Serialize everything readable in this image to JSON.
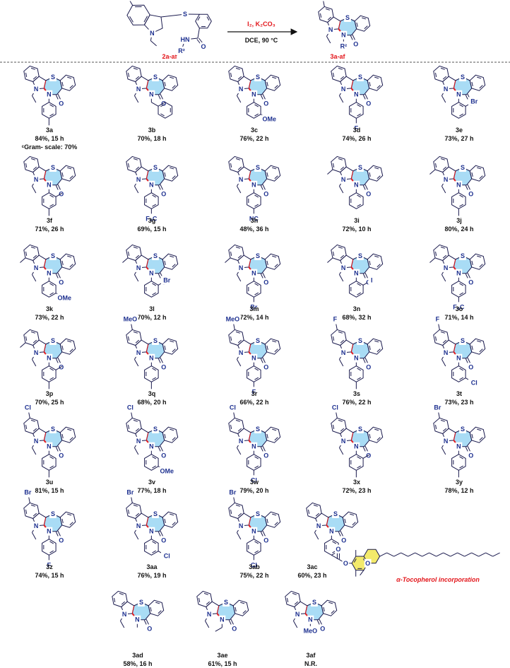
{
  "scheme": {
    "r1": "R¹",
    "s": "S",
    "n": "N",
    "hn": "HN",
    "r2": "R²",
    "o": "O",
    "reactant": "2a-af",
    "reagents": "I₂, K₂CO₃",
    "conditions": "DCE, 90 °C",
    "product": "3a-af"
  },
  "atoms": {
    "s": "S",
    "n": "N",
    "o": "O"
  },
  "compounds": [
    {
      "id": "3a",
      "result": "84%, 15 h",
      "note": "ᶜGram- scale: 70%"
    },
    {
      "id": "3b",
      "result": "70%, 18 h"
    },
    {
      "id": "3c",
      "result": "76%, 22 h",
      "sub": "OMe"
    },
    {
      "id": "3d",
      "result": "74%, 26 h",
      "sub": "F"
    },
    {
      "id": "3e",
      "result": "73%, 27 h",
      "sub": "Br"
    },
    {
      "id": "3f",
      "result": "71%, 26 h"
    },
    {
      "id": "3g",
      "result": "69%, 15 h",
      "sub": "F₃C"
    },
    {
      "id": "3h",
      "result": "48%, 36 h",
      "sub": "NC"
    },
    {
      "id": "3i",
      "result": "72%, 10 h"
    },
    {
      "id": "3j",
      "result": "80%, 24 h"
    },
    {
      "id": "3k",
      "result": "73%, 22 h",
      "sub": "OMe"
    },
    {
      "id": "3l",
      "result": "70%, 12 h",
      "sub": "Br"
    },
    {
      "id": "3m",
      "result": "72%, 14 h",
      "sub": "Br"
    },
    {
      "id": "3n",
      "result": "68%, 32 h",
      "sub": "I"
    },
    {
      "id": "3o",
      "result": "71%, 14 h",
      "sub": "F₃C"
    },
    {
      "id": "3p",
      "result": "70%, 25 h"
    },
    {
      "id": "3q",
      "result": "68%, 20 h",
      "top": "MeO"
    },
    {
      "id": "3r",
      "result": "66%, 22 h",
      "top": "MeO",
      "sub": "F"
    },
    {
      "id": "3s",
      "result": "76%, 22 h",
      "top": "F"
    },
    {
      "id": "3t",
      "result": "73%, 23 h",
      "top": "F",
      "sub": "Cl"
    },
    {
      "id": "3u",
      "result": "81%, 15 h",
      "top": "Cl"
    },
    {
      "id": "3v",
      "result": "77%, 18 h",
      "top": "Cl",
      "sub": "OMe"
    },
    {
      "id": "3w",
      "result": "79%, 20 h",
      "top": "Cl",
      "sub": "Cl"
    },
    {
      "id": "3x",
      "result": "72%, 23 h",
      "top": "Cl"
    },
    {
      "id": "3y",
      "result": "78%, 12 h",
      "top": "Br"
    },
    {
      "id": "3z",
      "result": "74%, 15 h",
      "top": "Br",
      "sub": "F"
    },
    {
      "id": "3aa",
      "result": "76%, 19 h",
      "top": "Br",
      "sub": "Cl"
    },
    {
      "id": "3ab",
      "result": "75%, 22 h",
      "top": "Br",
      "sub": "Cl"
    },
    {
      "id": "3ac",
      "result": "60%, 23 h"
    },
    {
      "id": "3ad",
      "result": "58%, 16 h"
    },
    {
      "id": "3ae",
      "result": "61%, 15 h"
    },
    {
      "id": "3af",
      "result": "N.R.",
      "n_sub": "MeO"
    }
  ],
  "tocopherol": {
    "label": "α-Tocopherol incorporation"
  }
}
